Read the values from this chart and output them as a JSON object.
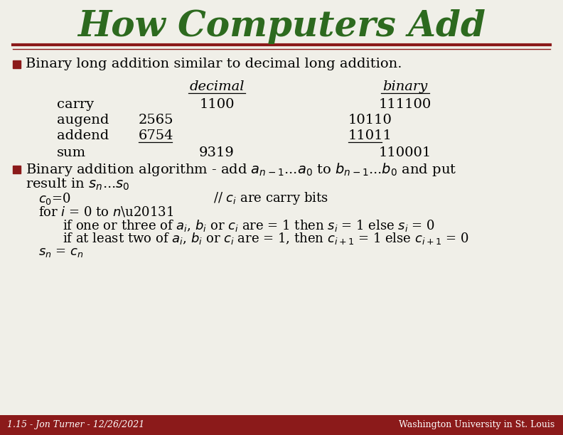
{
  "title": "How Computers Add",
  "title_color": "#2d6a1f",
  "bg_color": "#f0efe8",
  "header_line_color": "#8b1a1a",
  "bullet_color": "#8b1a1a",
  "text_color": "#000000",
  "footer_bg": "#8b1a1a",
  "footer_text": "1.15 - Jon Turner - 12/26/2021",
  "footer_right": "Washington University in St. Louis",
  "bullet1": "Binary long addition similar to decimal long addition.",
  "decimal_header": "decimal",
  "binary_header": "binary",
  "carry_label": "carry",
  "augend_label": "augend",
  "addend_label": "addend",
  "sum_label": "sum",
  "dec_carry": "1100",
  "dec_augend": "2565",
  "dec_addend": "6754",
  "dec_sum": "9319",
  "bin_carry": "111100",
  "bin_augend": "10110",
  "bin_addend": "11011",
  "bin_sum": "110001"
}
